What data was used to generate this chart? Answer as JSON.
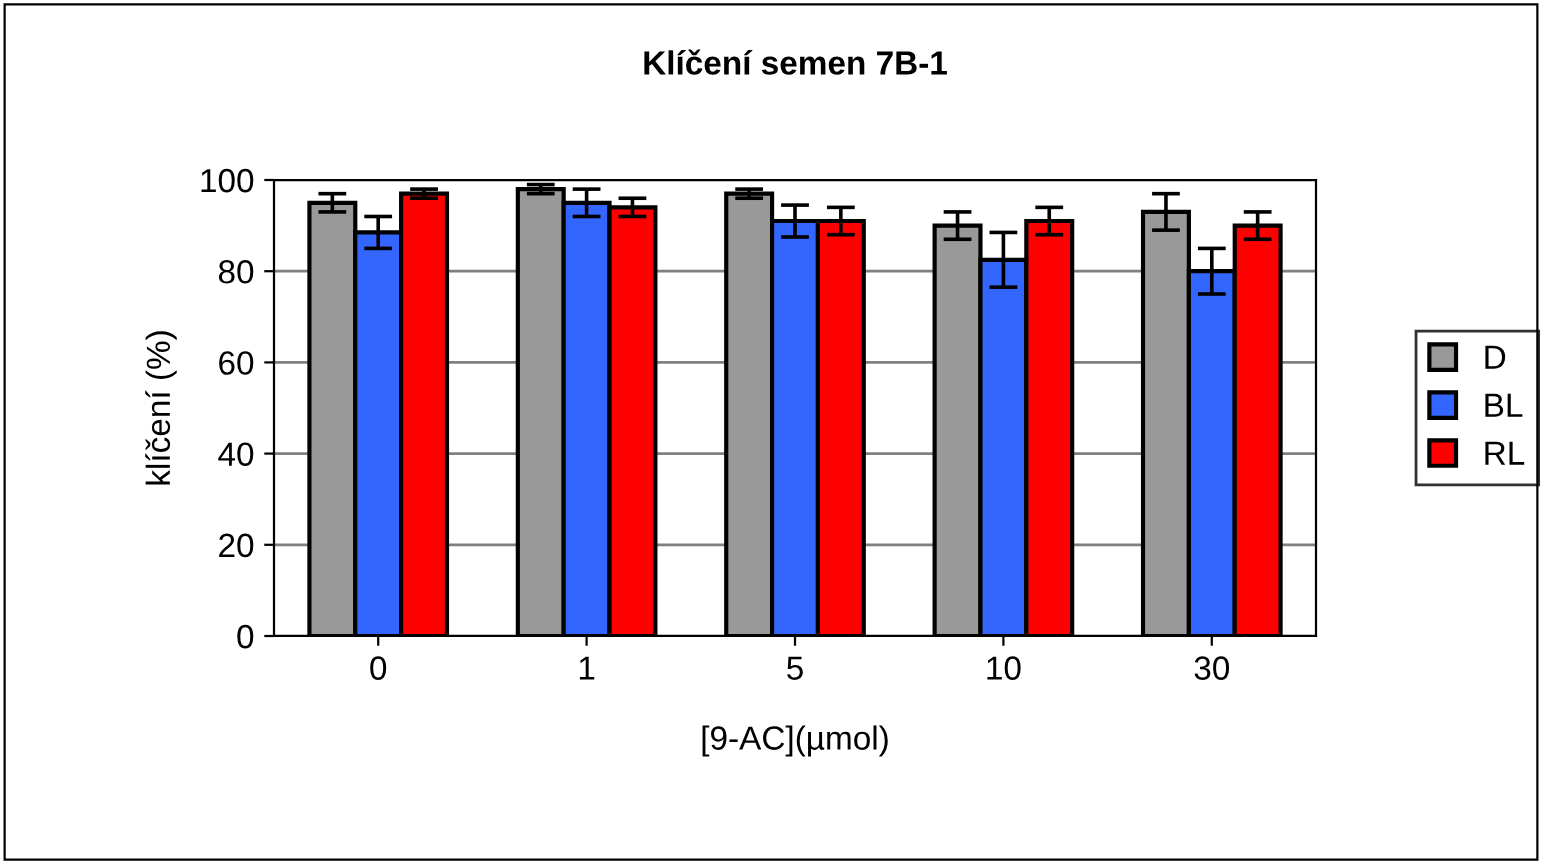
{
  "chart_data": {
    "type": "bar",
    "title": "Klíčení semen 7B-1",
    "xlabel": "[9-AC](µmol)",
    "ylabel": "klíčení (%)",
    "categories": [
      "0",
      "1",
      "5",
      "10",
      "30"
    ],
    "series": [
      {
        "name": "D",
        "color": "#999999",
        "values": [
          95,
          98,
          97,
          90,
          93
        ],
        "errors": [
          2,
          1,
          1,
          3,
          4
        ]
      },
      {
        "name": "BL",
        "color": "#3366ff",
        "values": [
          88.5,
          95,
          91,
          82.5,
          80
        ],
        "errors": [
          3.5,
          3,
          3.5,
          6,
          5
        ]
      },
      {
        "name": "RL",
        "color": "#ff0000",
        "values": [
          97,
          94,
          91,
          91,
          90
        ],
        "errors": [
          1,
          2,
          3,
          3,
          3
        ]
      }
    ],
    "ylim": [
      0,
      100
    ],
    "yticks": [
      0,
      20,
      40,
      60,
      80,
      100
    ],
    "grid": "y",
    "legend": "right"
  }
}
